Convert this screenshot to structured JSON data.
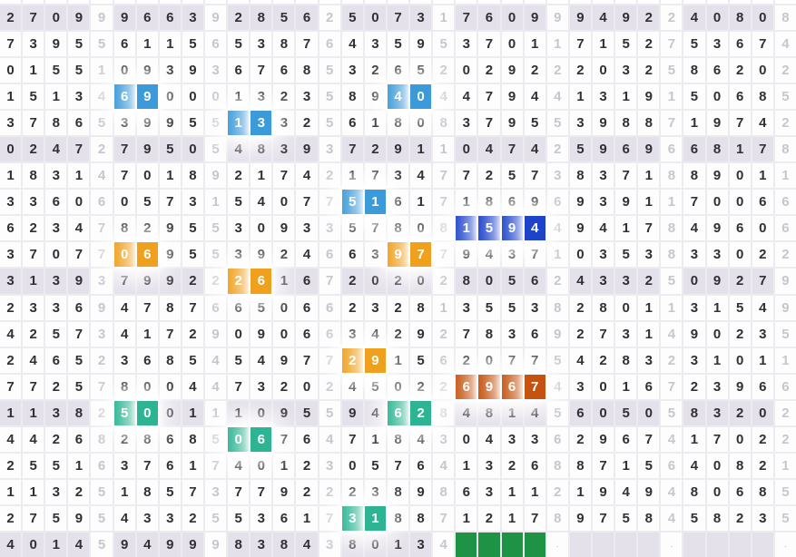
{
  "palette": {
    "blue": "#3b9ad9",
    "darkblue": "#1e43cb",
    "orange": "#efa01d",
    "burnt": "#c5520e",
    "teal": "#2db593",
    "green": "#1e9245",
    "row_shade": "#e5e1eb",
    "cell_bg": "#fdfdfe",
    "digit": "#303035",
    "digit_light": "#c9c5ce"
  },
  "grid": {
    "columns": 35,
    "separator_columns": [
      5,
      10,
      15,
      20,
      25,
      30,
      35
    ],
    "shaded_rows": [
      1,
      6,
      11,
      16,
      21
    ],
    "rows": [
      "27099966392856250731760999492240808",
      "73955611565387643595370117152753674",
      "01551093936768532652029222032586202",
      "15134690001323589404479441319150685",
      "37865399551332561808379553988719742",
      "02472795054839372911047425969668178",
      "18314701892174217347725738371889011",
      "33606057315407751617186969391170066",
      "62347829553093357808159449417849606",
      "37077069553924663977943710353833022",
      "31393799222616720202805624332509279",
      "23369478766506623281355382801131549",
      "42573417290906634292783692731490235",
      "24652368545497729156207754283231011",
      "77257800447320245022696743016723966",
      "11382500111095594628481456050583202",
      "44268286850676471843043362967417022",
      "25516376174012305764132688715640821",
      "11325185737792223898631121949480685",
      "27595433255361731887121789758458235",
      "40145949998384380134####.    .    ."
    ],
    "highlights": [
      {
        "row": 4,
        "cols": [
          6,
          7
        ],
        "color": "blue"
      },
      {
        "row": 4,
        "cols": [
          18,
          19
        ],
        "color": "blue"
      },
      {
        "row": 5,
        "cols": [
          11,
          12
        ],
        "color": "blue"
      },
      {
        "row": 8,
        "cols": [
          16,
          17
        ],
        "color": "blue"
      },
      {
        "row": 9,
        "cols": [
          21,
          22,
          23,
          24
        ],
        "color": "darkblue"
      },
      {
        "row": 10,
        "cols": [
          6,
          7
        ],
        "color": "orange"
      },
      {
        "row": 10,
        "cols": [
          18,
          19
        ],
        "color": "orange"
      },
      {
        "row": 11,
        "cols": [
          11,
          12
        ],
        "color": "orange"
      },
      {
        "row": 14,
        "cols": [
          16,
          17
        ],
        "color": "orange"
      },
      {
        "row": 15,
        "cols": [
          21,
          22,
          23,
          24
        ],
        "color": "burnt"
      },
      {
        "row": 16,
        "cols": [
          6,
          7
        ],
        "color": "teal"
      },
      {
        "row": 16,
        "cols": [
          18,
          19
        ],
        "color": "teal"
      },
      {
        "row": 17,
        "cols": [
          11,
          12
        ],
        "color": "teal"
      },
      {
        "row": 20,
        "cols": [
          16,
          17
        ],
        "color": "teal"
      },
      {
        "row": 21,
        "cols": [
          21,
          22,
          23,
          24
        ],
        "color": "green"
      }
    ]
  }
}
